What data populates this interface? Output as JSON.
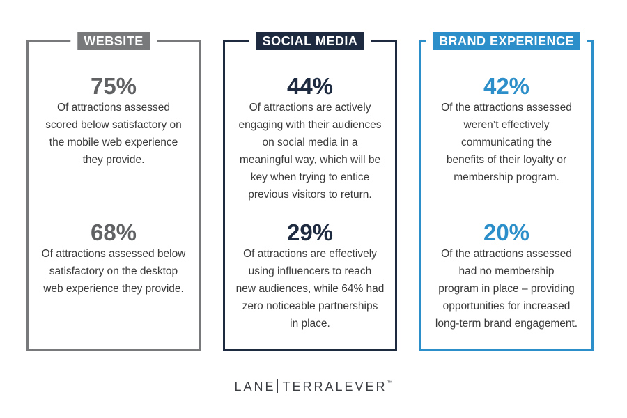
{
  "cards": {
    "website": {
      "label": "WEBSITE",
      "stats": [
        {
          "value": "75%",
          "lines": [
            "Of attractions assessed",
            "scored below satisfactory on",
            "the mobile web experience",
            "they provide."
          ]
        },
        {
          "value": "68%",
          "lines": [
            "Of attractions assessed below",
            "satisfactory on the desktop",
            "web experience they provide."
          ]
        }
      ]
    },
    "social": {
      "label": "SOCIAL MEDIA",
      "stats": [
        {
          "value": "44%",
          "lines": [
            "Of attractions are actively",
            "engaging with their audiences",
            "on social media in a",
            "meaningful way, which will be",
            "key when trying to entice",
            "previous visitors to return."
          ]
        },
        {
          "value": "29%",
          "lines": [
            "Of attractions are effectively",
            "using influencers to reach",
            "new audiences, while 64% had",
            "zero noticeable partnerships",
            "in place."
          ]
        }
      ]
    },
    "brand": {
      "label": "BRAND EXPERIENCE",
      "stats": [
        {
          "value": "42%",
          "lines": [
            "Of the attractions assessed",
            "weren’t effectively",
            "communicating the",
            "benefits of their loyalty or",
            "membership program."
          ]
        },
        {
          "value": "20%",
          "lines": [
            "Of the attractions assessed",
            "had no membership",
            "program in place – providing",
            "opportunities for increased",
            "long-term brand engagement."
          ]
        }
      ]
    }
  },
  "footer": {
    "brand_left": "LANE",
    "brand_right": "TERRALEVER",
    "trademark": "™"
  },
  "colors": {
    "website": "#77797b",
    "social": "#1e2a3f",
    "brand": "#2d8fc9"
  }
}
